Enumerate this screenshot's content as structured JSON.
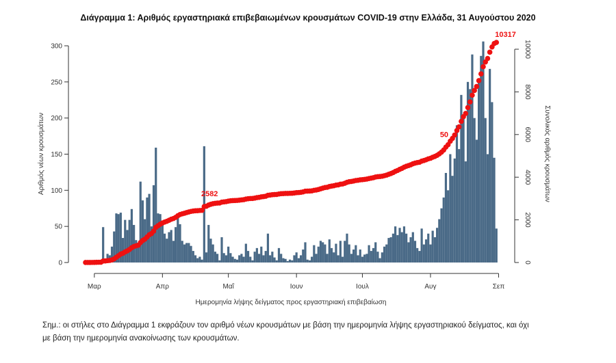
{
  "chart_data": {
    "type": "bar+line",
    "title": "Διάγραμμα 1: Αριθμός εργαστηριακά επιβεβαιωμένων κρουσμάτων COVID-19 στην Ελλάδα, 31 Αυγούστου 2020",
    "xlabel": "Ημερομηνία λήψης δείγματος προς εργαστηριακή επιβεβαίωση",
    "ylabel": "Αριθμός νέων κρουσμάτων",
    "y2label": "Συνολικός αριθμός κρουσμάτων",
    "start_date": "2020-02-26",
    "ylim": [
      0,
      300
    ],
    "y2lim": [
      0,
      10000
    ],
    "yticks": [
      "0",
      "50",
      "100",
      "150",
      "200",
      "250",
      "300"
    ],
    "y2ticks": [
      "0",
      "2000",
      "4000",
      "6000",
      "8000",
      "10000"
    ],
    "xticks": [
      "Μαρ",
      "Απρ",
      "Μαΐ",
      "Ιουν",
      "Ιουλ",
      "Αυγ",
      "Σεπ"
    ],
    "bar_color": "#4a6a87",
    "line_color": "#ee1111",
    "daily_new_cases": [
      1,
      1,
      1,
      1,
      2,
      3,
      2,
      3,
      49,
      5,
      12,
      10,
      22,
      43,
      68,
      67,
      69,
      34,
      59,
      45,
      59,
      74,
      52,
      31,
      25,
      112,
      86,
      60,
      90,
      95,
      50,
      107,
      159,
      68,
      67,
      52,
      40,
      33,
      42,
      45,
      30,
      49,
      68,
      53,
      30,
      25,
      27,
      27,
      23,
      16,
      10,
      6,
      8,
      4,
      161,
      14,
      52,
      33,
      25,
      15,
      12,
      3,
      35,
      13,
      10,
      22,
      13,
      8,
      5,
      4,
      10,
      12,
      8,
      26,
      16,
      8,
      3,
      15,
      20,
      12,
      22,
      10,
      16,
      40,
      10,
      15,
      7,
      3,
      20,
      12,
      6,
      5,
      2,
      4,
      3,
      10,
      14,
      6,
      10,
      18,
      28,
      4,
      3,
      8,
      24,
      12,
      22,
      30,
      28,
      25,
      12,
      32,
      20,
      14,
      26,
      10,
      30,
      8,
      30,
      40,
      25,
      12,
      18,
      24,
      10,
      18,
      8,
      11,
      12,
      24,
      16,
      20,
      28,
      15,
      6,
      14,
      22,
      25,
      34,
      35,
      40,
      50,
      38,
      48,
      42,
      50,
      40,
      28,
      35,
      42,
      30,
      20,
      16,
      47,
      25,
      32,
      40,
      25,
      44,
      35,
      48,
      60,
      75,
      90,
      124,
      100,
      150,
      120,
      144,
      190,
      157,
      232,
      200,
      140,
      250,
      240,
      288,
      200,
      170,
      250,
      286,
      306,
      200,
      150,
      268,
      222,
      145,
      47
    ],
    "cumulative_final": 10317,
    "annotations": [
      {
        "label": "2582",
        "date_index": 64
      },
      {
        "label": "50",
        "date_index": 167
      },
      {
        "label": "10317",
        "date_index": 187
      }
    ]
  },
  "note": {
    "line1": "Σημ.: οι στήλες στο Διάγραμμα 1 εκφράζουν τον αριθμό νέων κρουσμάτων με βάση την ημερομηνία λήψης εργαστηριακού δείγματος, και όχι",
    "line2": "με βάση την ημερομηνία ανακοίνωσης των κρουσμάτων."
  }
}
